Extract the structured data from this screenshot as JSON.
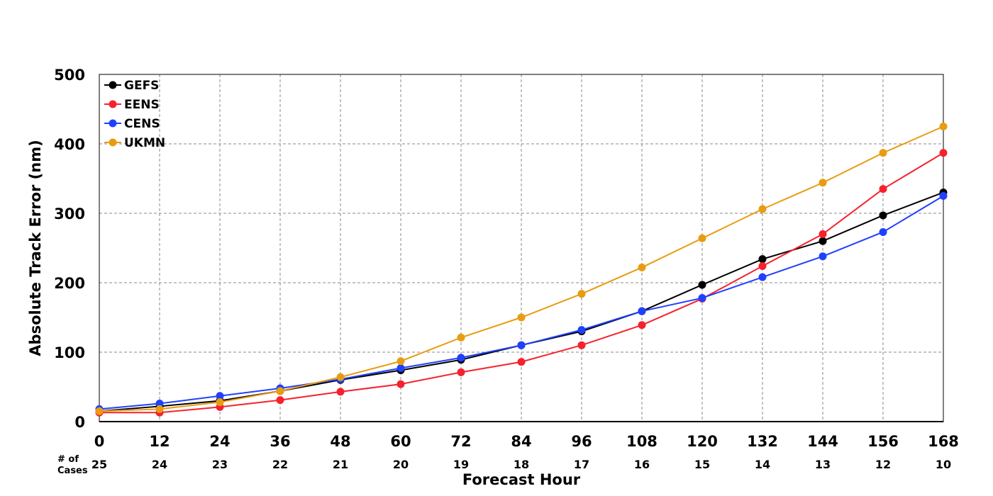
{
  "chart_data": {
    "type": "line",
    "xlabel": "Forecast Hour",
    "ylabel": "Absolute Track Error (nm)",
    "x": [
      0,
      12,
      24,
      36,
      48,
      60,
      72,
      84,
      96,
      108,
      120,
      132,
      144,
      156,
      168
    ],
    "xlim": [
      0,
      168
    ],
    "ylim": [
      0,
      500
    ],
    "yticks": [
      0,
      100,
      200,
      300,
      400,
      500
    ],
    "grid": true,
    "legend_position": "top-left",
    "cases_title_line1": "# of",
    "cases_title_line2": "Cases",
    "cases": [
      25,
      24,
      23,
      22,
      21,
      20,
      19,
      18,
      17,
      16,
      15,
      14,
      13,
      12,
      10
    ],
    "series": [
      {
        "name": "GEFS",
        "color": "#000000",
        "values": [
          15,
          22,
          30,
          44,
          60,
          74,
          89,
          110,
          130,
          159,
          197,
          234,
          260,
          297,
          330
        ]
      },
      {
        "name": "EENS",
        "color": "#f5222d",
        "values": [
          13,
          13,
          21,
          31,
          43,
          54,
          71,
          86,
          110,
          139,
          177,
          224,
          270,
          335,
          387
        ]
      },
      {
        "name": "CENS",
        "color": "#2040ff",
        "values": [
          18,
          26,
          37,
          48,
          61,
          77,
          92,
          110,
          132,
          159,
          178,
          208,
          238,
          273,
          325
        ]
      },
      {
        "name": "UKMN",
        "color": "#e89c10",
        "values": [
          15,
          18,
          28,
          44,
          64,
          87,
          121,
          150,
          184,
          222,
          264,
          306,
          344,
          387,
          425
        ]
      }
    ]
  }
}
